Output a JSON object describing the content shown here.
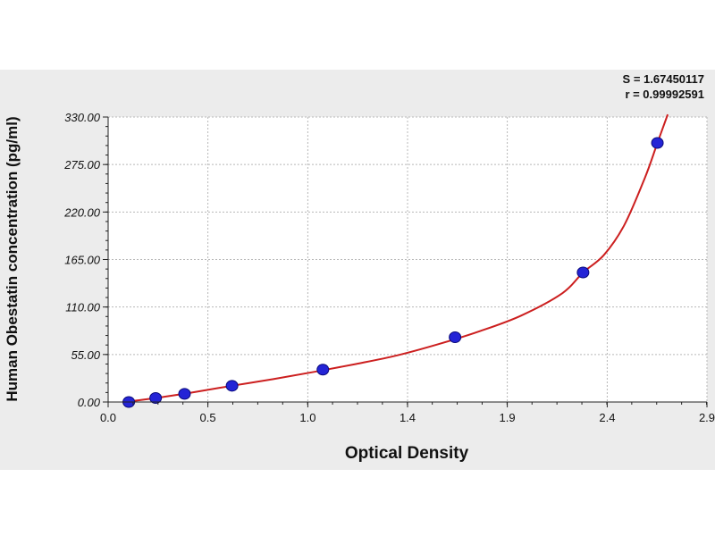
{
  "chart_data": {
    "type": "scatter",
    "xlabel": "Optical Density",
    "ylabel": "Human Obestatin concentration  (pg/ml)",
    "xlim": [
      0.0,
      2.9
    ],
    "ylim": [
      0.0,
      330.0
    ],
    "x_ticks": [
      "0.0",
      "0.5",
      "1.0",
      "1.4",
      "1.9",
      "2.4",
      "2.9"
    ],
    "x_tick_values": [
      0.0,
      0.483,
      0.967,
      1.45,
      1.933,
      2.417,
      2.9
    ],
    "y_ticks": [
      "0.00",
      "55.00",
      "110.00",
      "165.00",
      "220.00",
      "275.00",
      "330.00"
    ],
    "y_tick_values": [
      0,
      55,
      110,
      165,
      220,
      275,
      330
    ],
    "grid": true,
    "stats": {
      "s": "S = 1.67450117",
      "r": "r = 0.99992591"
    },
    "points": [
      {
        "x": 0.1,
        "y": 0.0
      },
      {
        "x": 0.23,
        "y": 4.7
      },
      {
        "x": 0.37,
        "y": 9.4
      },
      {
        "x": 0.6,
        "y": 18.8
      },
      {
        "x": 1.04,
        "y": 37.5
      },
      {
        "x": 1.68,
        "y": 75.0
      },
      {
        "x": 2.3,
        "y": 150.0
      },
      {
        "x": 2.66,
        "y": 300.0
      }
    ],
    "fit_curve": [
      {
        "x": 0.07,
        "y": 0.0
      },
      {
        "x": 0.2,
        "y": 3.6
      },
      {
        "x": 0.4,
        "y": 10.8
      },
      {
        "x": 0.6,
        "y": 18.8
      },
      {
        "x": 0.8,
        "y": 26.5
      },
      {
        "x": 1.0,
        "y": 35.0
      },
      {
        "x": 1.2,
        "y": 44.0
      },
      {
        "x": 1.4,
        "y": 54.0
      },
      {
        "x": 1.6,
        "y": 67.0
      },
      {
        "x": 1.8,
        "y": 82.0
      },
      {
        "x": 2.0,
        "y": 100.0
      },
      {
        "x": 2.2,
        "y": 126.0
      },
      {
        "x": 2.3,
        "y": 150.0
      },
      {
        "x": 2.4,
        "y": 170.0
      },
      {
        "x": 2.5,
        "y": 205.0
      },
      {
        "x": 2.6,
        "y": 260.0
      },
      {
        "x": 2.66,
        "y": 300.0
      },
      {
        "x": 2.71,
        "y": 333.0
      }
    ],
    "colors": {
      "outer_background": "#ececec",
      "plot_background": "#ffffff",
      "grid": "#b8b8b8",
      "curve": "#cc1f1f",
      "marker_fill": "#2424d6",
      "marker_edge": "#0a0a7a"
    }
  }
}
